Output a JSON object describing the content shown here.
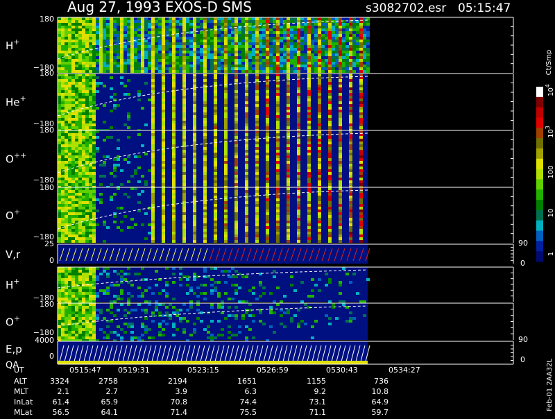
{
  "header": {
    "title": "Aug 27, 1993   EXOS-D SMS",
    "file": "s3082702.esr",
    "time": "05:15:47"
  },
  "panels": [
    {
      "name": "H",
      "sup": "+",
      "top": "180",
      "bottom": "−180"
    },
    {
      "name": "He",
      "sup": "+",
      "top": "180",
      "bottom": "−180"
    },
    {
      "name": "O",
      "sup": "++",
      "top": "180",
      "bottom": "−180"
    },
    {
      "name": "O",
      "sup": "+",
      "top": "180",
      "bottom": "−180"
    },
    {
      "name": "V,r",
      "top": "25",
      "bottom": "0",
      "right_top": "90",
      "right_bottom": "0"
    },
    {
      "name": "H",
      "sup": "+",
      "bottom": "−180"
    },
    {
      "name": "O",
      "sup": "+",
      "top": "180",
      "bottom": "−180"
    },
    {
      "name": "E,p",
      "name2": "QA",
      "top": "4000",
      "bottom": "0",
      "right_top": "90",
      "right_bottom": "0"
    }
  ],
  "colorbar": {
    "label": "Ct/Smp",
    "ticks": [
      {
        "text": "10",
        "sup": "4"
      },
      {
        "text": "10",
        "sup": "3"
      },
      {
        "text": "100"
      },
      {
        "text": "10"
      },
      {
        "text": "1"
      }
    ]
  },
  "table": {
    "rows": [
      [
        "UT",
        "0515:47",
        "0519:31",
        "0523:15",
        "0526:59",
        "0530:43",
        "0534:27"
      ],
      [
        "ALT",
        "3324",
        "2758",
        "2194",
        "1651",
        "1155",
        "736"
      ],
      [
        "MLT",
        "2.1",
        "2.7",
        "3.9",
        "6.3",
        "9.2",
        "10.8"
      ],
      [
        "InLat",
        "61.4",
        "65.9",
        "70.8",
        "74.4",
        "73.1",
        "64.9"
      ],
      [
        "MLat",
        "56.5",
        "64.1",
        "71.4",
        "75.5",
        "71.1",
        "59.7"
      ]
    ]
  },
  "footer": "Feb-01 2AA32L"
}
